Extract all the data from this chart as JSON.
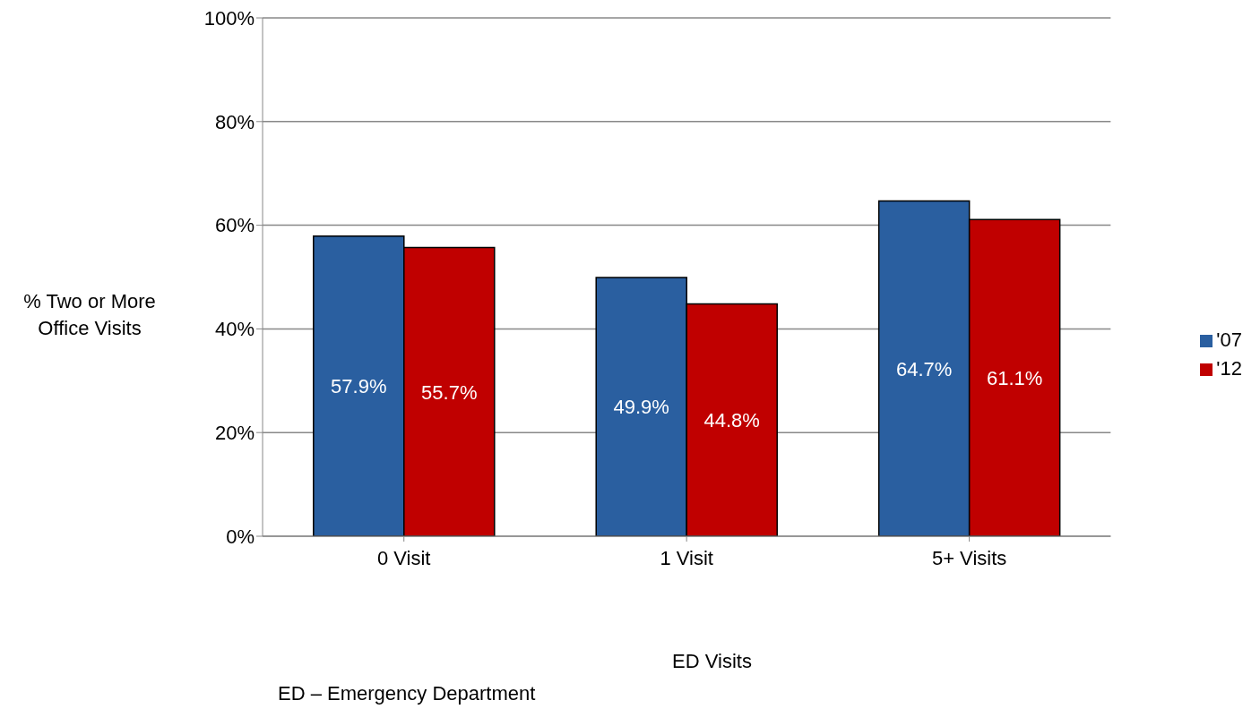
{
  "chart_data": {
    "type": "bar",
    "xlabel": "ED Visits",
    "ylabel": "% Two or More\nOffice Visits",
    "annotations": [
      "ED – Emergency Department"
    ],
    "categories": [
      "0 Visit",
      "1 Visit",
      "5+ Visits"
    ],
    "series": [
      {
        "name": "'07",
        "color": "#2a5fa0",
        "values": [
          57.9,
          49.9,
          64.7
        ],
        "value_labels": [
          "57.9%",
          "49.9%",
          "64.7%"
        ]
      },
      {
        "name": "'12",
        "color": "#c00000",
        "values": [
          55.7,
          44.8,
          61.1
        ],
        "value_labels": [
          "55.7%",
          "44.8%",
          "61.1%"
        ]
      }
    ],
    "ylim": [
      0,
      100
    ],
    "yticks": [
      {
        "value": 0,
        "label": "0%"
      },
      {
        "value": 20,
        "label": "20%"
      },
      {
        "value": 40,
        "label": "40%"
      },
      {
        "value": 60,
        "label": "60%"
      },
      {
        "value": 80,
        "label": "80%"
      },
      {
        "value": 100,
        "label": "100%"
      }
    ],
    "grid": "y",
    "legend": "right"
  }
}
